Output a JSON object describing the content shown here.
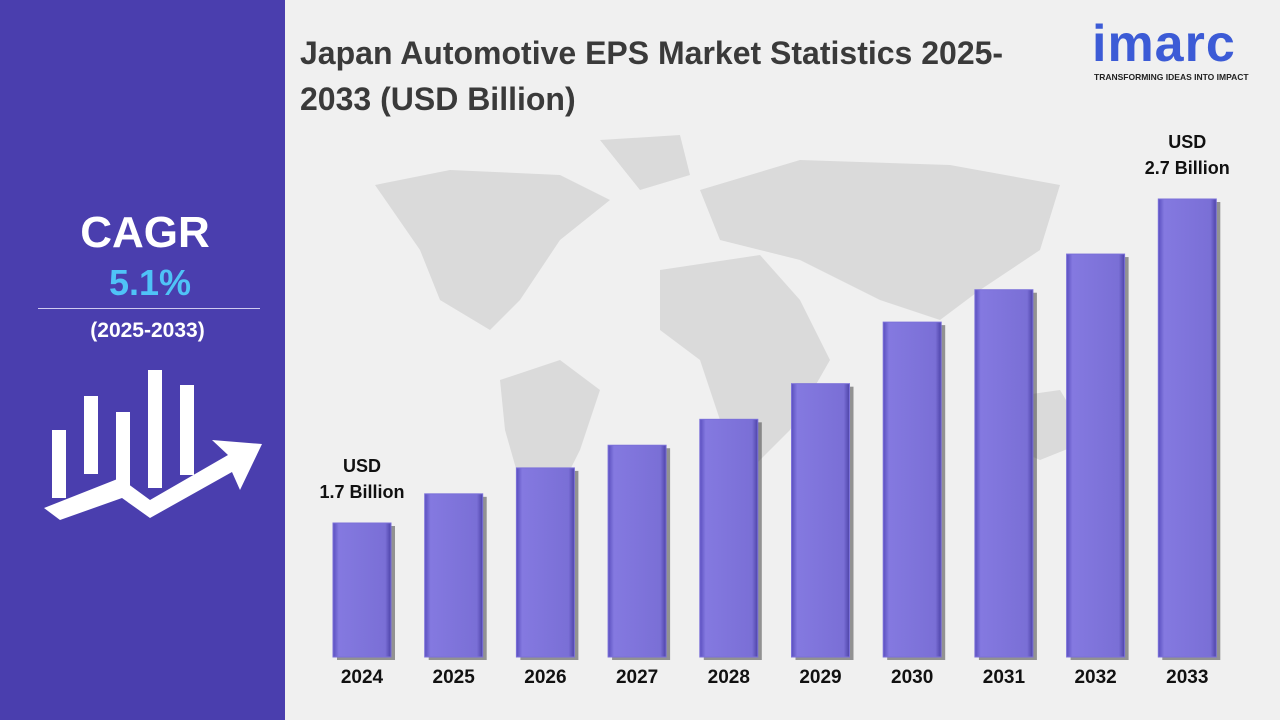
{
  "chart_data": {
    "type": "bar",
    "title": "Japan Automotive EPS Market Statistics 2025-2033 (USD Billion)",
    "categories": [
      "2024",
      "2025",
      "2026",
      "2027",
      "2028",
      "2029",
      "2030",
      "2031",
      "2032",
      "2033"
    ],
    "values": [
      1.7,
      1.79,
      1.87,
      1.94,
      2.02,
      2.13,
      2.32,
      2.42,
      2.53,
      2.7
    ],
    "value_labels": [
      "USD\n1.7 Billion",
      null,
      null,
      null,
      null,
      null,
      null,
      null,
      null,
      "USD\n2.7 Billion"
    ],
    "color": "#7b70d9"
  },
  "cagr": {
    "label": "CAGR",
    "value": "5.1%",
    "period": "(2025-2033)"
  },
  "logo": {
    "name": "imarc",
    "tagline": "TRANSFORMING IDEAS INTO IMPACT"
  }
}
